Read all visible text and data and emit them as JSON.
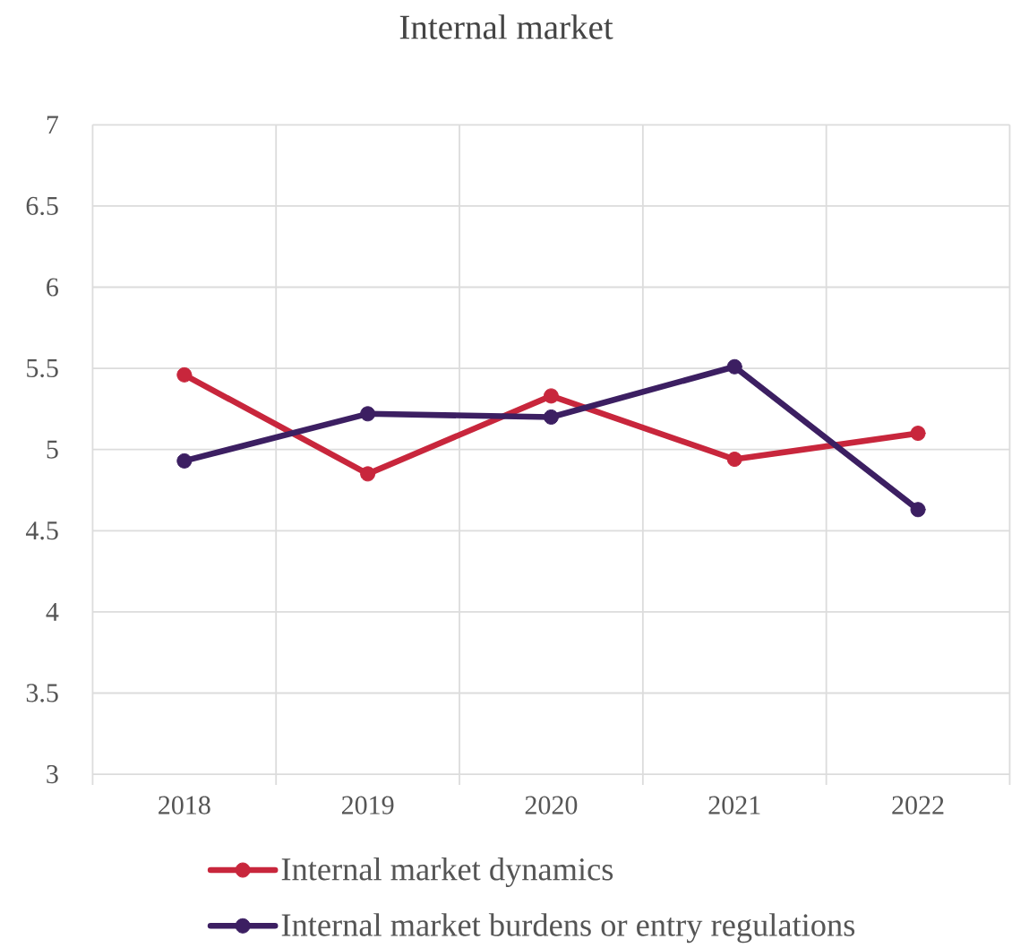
{
  "chart_data": {
    "type": "line",
    "title": "Internal market",
    "categories": [
      "2018",
      "2019",
      "2020",
      "2021",
      "2022"
    ],
    "series": [
      {
        "name": "Internal market dynamics",
        "color": "#c8263c",
        "values": [
          5.46,
          4.85,
          5.33,
          4.94,
          5.1
        ]
      },
      {
        "name": "Internal market burdens or entry regulations",
        "color": "#3c1f62",
        "values": [
          4.93,
          5.22,
          5.2,
          5.51,
          4.63
        ]
      }
    ],
    "ylim": [
      3,
      7
    ],
    "yticks": [
      3,
      3.5,
      4,
      4.5,
      5,
      5.5,
      6,
      6.5,
      7
    ],
    "grid": true,
    "legend": "bottom",
    "marker": "circle",
    "line_style": "solid"
  }
}
